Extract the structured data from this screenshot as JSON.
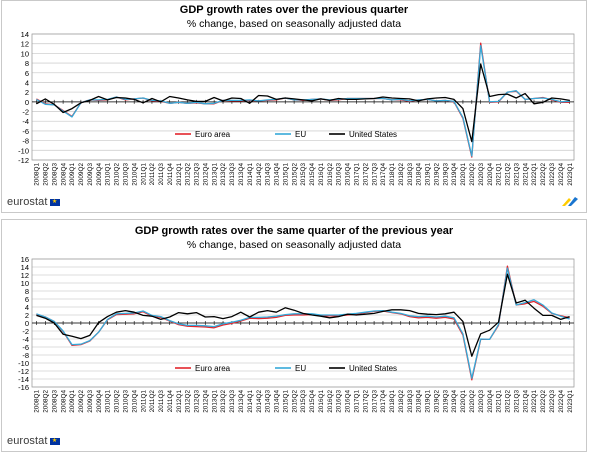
{
  "brand": {
    "logo_text": "eurostat",
    "flag_color": "#0033a0",
    "corner_mark_colors": [
      "#ffcc00",
      "#1a75cf"
    ]
  },
  "colors": {
    "euro_area": "#e3262d",
    "eu": "#36a9d8",
    "united_states": "#000000"
  },
  "chart_data": [
    {
      "type": "line",
      "title": "GDP growth rates over the previous quarter",
      "subtitle": "% change, based on seasonally adjusted data",
      "xlabel": "",
      "ylabel": "",
      "ylim": [
        -12,
        14
      ],
      "yticks": [
        -12,
        -10,
        -8,
        -6,
        -4,
        -2,
        0,
        2,
        4,
        6,
        8,
        10,
        12,
        14
      ],
      "grid": true,
      "legend_position": "bottom-center",
      "categories": [
        "2008Q1",
        "2008Q2",
        "2008Q3",
        "2008Q4",
        "2009Q1",
        "2009Q2",
        "2009Q3",
        "2009Q4",
        "2010Q1",
        "2010Q2",
        "2010Q3",
        "2010Q4",
        "2011Q1",
        "2011Q2",
        "2011Q3",
        "2011Q4",
        "2012Q1",
        "2012Q2",
        "2012Q3",
        "2012Q4",
        "2013Q1",
        "2013Q2",
        "2013Q3",
        "2013Q4",
        "2014Q1",
        "2014Q2",
        "2014Q3",
        "2014Q4",
        "2015Q1",
        "2015Q2",
        "2015Q3",
        "2015Q4",
        "2016Q1",
        "2016Q2",
        "2016Q3",
        "2016Q4",
        "2017Q1",
        "2017Q2",
        "2017Q3",
        "2017Q4",
        "2018Q1",
        "2018Q2",
        "2018Q3",
        "2018Q4",
        "2019Q1",
        "2019Q2",
        "2019Q3",
        "2019Q4",
        "2020Q1",
        "2020Q2",
        "2020Q3",
        "2020Q4",
        "2021Q1",
        "2021Q2",
        "2021Q3",
        "2021Q4",
        "2022Q1",
        "2022Q2",
        "2022Q3",
        "2022Q4",
        "2023Q1"
      ],
      "series": [
        {
          "name": "Euro area",
          "color": "#e3262d",
          "values": [
            0.6,
            -0.4,
            -0.6,
            -1.8,
            -3.0,
            -0.2,
            0.4,
            0.3,
            0.4,
            1.0,
            0.4,
            0.6,
            0.8,
            0.2,
            0.1,
            -0.3,
            -0.1,
            -0.3,
            -0.2,
            -0.4,
            -0.4,
            0.3,
            0.2,
            0.2,
            0.3,
            0.2,
            0.3,
            0.4,
            0.8,
            0.4,
            0.3,
            0.5,
            0.6,
            0.3,
            0.4,
            0.7,
            0.7,
            0.7,
            0.7,
            0.7,
            0.4,
            0.4,
            0.1,
            0.4,
            0.5,
            0.2,
            0.3,
            0.0,
            -3.4,
            -11.4,
            12.1,
            -0.1,
            0.0,
            2.0,
            2.2,
            0.5,
            0.7,
            0.9,
            0.4,
            -0.1,
            -0.1
          ]
        },
        {
          "name": "EU",
          "color": "#36a9d8",
          "values": [
            0.5,
            -0.5,
            -0.6,
            -1.9,
            -3.1,
            -0.2,
            0.4,
            0.4,
            0.5,
            1.0,
            0.5,
            0.6,
            0.8,
            0.3,
            0.2,
            -0.3,
            -0.1,
            -0.3,
            -0.1,
            -0.4,
            -0.3,
            0.3,
            0.3,
            0.3,
            0.4,
            0.2,
            0.4,
            0.5,
            0.8,
            0.4,
            0.4,
            0.5,
            0.6,
            0.4,
            0.5,
            0.7,
            0.7,
            0.7,
            0.7,
            0.7,
            0.4,
            0.5,
            0.2,
            0.4,
            0.5,
            0.2,
            0.3,
            0.1,
            -3.2,
            -11.2,
            11.6,
            0.0,
            0.1,
            2.0,
            2.3,
            0.5,
            0.7,
            0.8,
            0.5,
            0.0,
            0.1
          ]
        },
        {
          "name": "United States",
          "color": "#000000",
          "values": [
            -0.4,
            0.6,
            -0.5,
            -2.2,
            -1.4,
            -0.2,
            0.3,
            1.1,
            0.4,
            0.9,
            0.8,
            0.5,
            -0.2,
            0.7,
            0.0,
            1.1,
            0.8,
            0.4,
            0.1,
            0.1,
            0.9,
            0.2,
            0.8,
            0.7,
            -0.3,
            1.3,
            1.2,
            0.5,
            0.8,
            0.6,
            0.4,
            0.2,
            0.6,
            0.3,
            0.7,
            0.5,
            0.5,
            0.6,
            0.7,
            1.0,
            0.8,
            0.7,
            0.6,
            0.2,
            0.6,
            0.8,
            0.9,
            0.5,
            -1.4,
            -8.2,
            7.8,
            1.1,
            1.5,
            1.6,
            0.8,
            1.7,
            -0.4,
            -0.1,
            0.8,
            0.6,
            0.3
          ]
        }
      ]
    },
    {
      "type": "line",
      "title": "GDP growth rates over the same quarter of the previous year",
      "subtitle": "% change, based on seasonally adjusted data",
      "xlabel": "",
      "ylabel": "",
      "ylim": [
        -16,
        16
      ],
      "yticks": [
        -16,
        -14,
        -12,
        -10,
        -8,
        -6,
        -4,
        -2,
        0,
        2,
        4,
        6,
        8,
        10,
        12,
        14,
        16
      ],
      "grid": true,
      "legend_position": "bottom-center",
      "categories": [
        "2008Q1",
        "2008Q2",
        "2008Q3",
        "2008Q4",
        "2009Q1",
        "2009Q2",
        "2009Q3",
        "2009Q4",
        "2010Q1",
        "2010Q2",
        "2010Q3",
        "2010Q4",
        "2011Q1",
        "2011Q2",
        "2011Q3",
        "2011Q4",
        "2012Q1",
        "2012Q2",
        "2012Q3",
        "2012Q4",
        "2013Q1",
        "2013Q2",
        "2013Q3",
        "2013Q4",
        "2014Q1",
        "2014Q2",
        "2014Q3",
        "2014Q4",
        "2015Q1",
        "2015Q2",
        "2015Q3",
        "2015Q4",
        "2016Q1",
        "2016Q2",
        "2016Q3",
        "2016Q4",
        "2017Q1",
        "2017Q2",
        "2017Q3",
        "2017Q4",
        "2018Q1",
        "2018Q2",
        "2018Q3",
        "2018Q4",
        "2019Q1",
        "2019Q2",
        "2019Q3",
        "2019Q4",
        "2020Q1",
        "2020Q2",
        "2020Q3",
        "2020Q4",
        "2021Q1",
        "2021Q2",
        "2021Q3",
        "2021Q4",
        "2022Q1",
        "2022Q2",
        "2022Q3",
        "2022Q4",
        "2023Q1"
      ],
      "series": [
        {
          "name": "Euro area",
          "color": "#e3262d",
          "values": [
            2.2,
            1.5,
            0.4,
            -2.1,
            -5.6,
            -5.4,
            -4.5,
            -2.3,
            0.8,
            2.1,
            2.2,
            2.3,
            2.8,
            1.7,
            1.4,
            0.5,
            -0.4,
            -0.8,
            -0.9,
            -1.0,
            -1.2,
            -0.5,
            -0.1,
            0.5,
            1.2,
            1.1,
            1.2,
            1.4,
            1.9,
            2.0,
            2.0,
            2.1,
            1.8,
            1.8,
            1.8,
            2.0,
            2.2,
            2.6,
            2.9,
            3.0,
            2.6,
            2.3,
            1.6,
            1.3,
            1.4,
            1.2,
            1.4,
            1.0,
            -3.0,
            -14.2,
            -4.1,
            -4.1,
            -0.6,
            14.2,
            4.5,
            4.8,
            5.4,
            4.2,
            2.4,
            1.8,
            1.3
          ]
        },
        {
          "name": "EU",
          "color": "#36a9d8",
          "values": [
            2.3,
            1.5,
            0.4,
            -2.0,
            -5.4,
            -5.3,
            -4.4,
            -2.3,
            0.9,
            2.3,
            2.4,
            2.5,
            3.0,
            1.9,
            1.6,
            0.6,
            -0.2,
            -0.6,
            -0.6,
            -0.7,
            -0.9,
            -0.2,
            0.2,
            0.7,
            1.4,
            1.4,
            1.5,
            1.7,
            2.1,
            2.3,
            2.3,
            2.3,
            2.0,
            2.0,
            2.0,
            2.2,
            2.4,
            2.7,
            3.0,
            3.1,
            2.7,
            2.4,
            1.8,
            1.6,
            1.7,
            1.5,
            1.7,
            1.3,
            -2.7,
            -13.8,
            -4.0,
            -4.1,
            -0.4,
            13.7,
            4.5,
            5.1,
            5.8,
            4.5,
            2.5,
            1.7,
            1.0
          ]
        },
        {
          "name": "United States",
          "color": "#000000",
          "values": [
            1.9,
            1.2,
            0.0,
            -2.8,
            -3.3,
            -3.9,
            -3.1,
            0.1,
            1.6,
            2.7,
            3.1,
            2.7,
            1.9,
            1.7,
            0.9,
            1.5,
            2.6,
            2.3,
            2.6,
            1.5,
            1.6,
            1.1,
            1.6,
            2.7,
            1.5,
            2.7,
            3.1,
            2.7,
            3.8,
            3.2,
            2.4,
            2.0,
            1.7,
            1.3,
            1.6,
            2.2,
            2.0,
            2.2,
            2.4,
            2.9,
            3.3,
            3.3,
            3.1,
            2.4,
            2.2,
            2.1,
            2.3,
            2.7,
            0.4,
            -8.3,
            -2.7,
            -1.8,
            0.2,
            12.2,
            5.0,
            5.7,
            3.7,
            1.9,
            1.9,
            0.9,
            1.6
          ]
        }
      ]
    }
  ]
}
